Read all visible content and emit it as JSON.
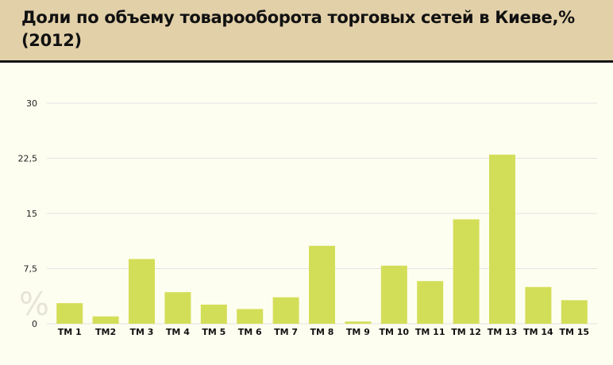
{
  "title": "Доли по объему товарооборота торговых сетей в Киеве,% (2012)",
  "watermark": "%",
  "colors": {
    "header_bg": "#e2d0a9",
    "plot_bg": "#fefef0",
    "bar": "#d3de58",
    "grid": "#e3e3e3"
  },
  "chart_data": {
    "type": "bar",
    "title": "Доли по объему товарооборота торговых сетей в Киеве,% (2012)",
    "xlabel": "",
    "ylabel": "",
    "ylim": [
      0,
      30
    ],
    "y_ticks": [
      "0",
      "7,5",
      "15",
      "22,5",
      "30"
    ],
    "y_tick_values": [
      0,
      7.5,
      15,
      22.5,
      30
    ],
    "grid": true,
    "categories": [
      "ТМ 1",
      "ТМ2",
      "ТМ 3",
      "ТМ 4",
      "ТМ 5",
      "ТМ 6",
      "ТМ 7",
      "ТМ 8",
      "ТМ 9",
      "ТМ 10",
      "ТМ 11",
      "ТМ 12",
      "ТМ 13",
      "ТМ 14",
      "ТМ 15"
    ],
    "values": [
      2.8,
      1.0,
      8.8,
      4.3,
      2.6,
      2.0,
      3.6,
      10.6,
      0.3,
      7.9,
      5.8,
      14.2,
      23.0,
      5.0,
      3.2
    ]
  }
}
